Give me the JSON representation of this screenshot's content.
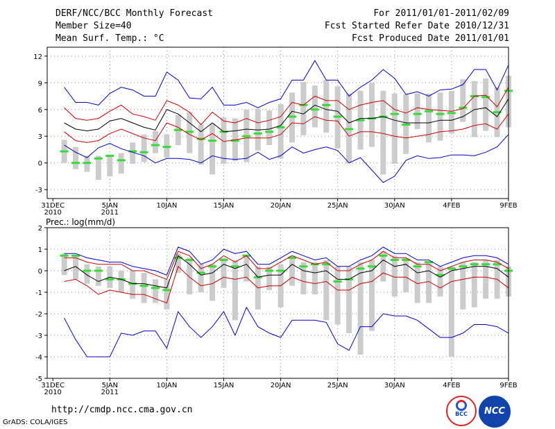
{
  "header": {
    "title": "DERF/NCC/BCC Monthly Forecast",
    "member_size": "Member Size=40",
    "variable": "Mean Surf. Temp.: °C",
    "period": "For 2011/01/01-2011/02/09",
    "fcst_started": "Fcst Started Refer Date 2010/12/31",
    "fcst_produced": "Fcst Produced Date 2011/01/01"
  },
  "footer": {
    "url": "http://cmdp.ncc.cma.gov.cn",
    "credit": "GrADS: COLA/IGES",
    "logo_bcc": "BCC",
    "logo_ncc": "NCC"
  },
  "colors": {
    "max_min": "#0000cc",
    "spread": "#cc0000",
    "mean": "#000000",
    "median": "#33dd33",
    "box": "#cccccc"
  },
  "x_axis": {
    "ticks": [
      {
        "day": 0,
        "label": "31DEC",
        "sub": "2010"
      },
      {
        "day": 5,
        "label": "5JAN",
        "sub": "2011"
      },
      {
        "day": 10,
        "label": "10JAN",
        "sub": ""
      },
      {
        "day": 15,
        "label": "15JAN",
        "sub": ""
      },
      {
        "day": 20,
        "label": "20JAN",
        "sub": ""
      },
      {
        "day": 25,
        "label": "25JAN",
        "sub": ""
      },
      {
        "day": 30,
        "label": "30JAN",
        "sub": ""
      },
      {
        "day": 35,
        "label": "4FEB",
        "sub": ""
      },
      {
        "day": 40,
        "label": "9FEB",
        "sub": ""
      }
    ]
  },
  "chart_data": [
    {
      "type": "box",
      "title": "Mean Surf. Temp.: °C",
      "ylabel": "°C",
      "ylim": [
        -4,
        13
      ],
      "yticks": [
        -3,
        0,
        3,
        6,
        9,
        12
      ],
      "x": [
        1,
        2,
        3,
        4,
        5,
        6,
        7,
        8,
        9,
        10,
        11,
        12,
        13,
        14,
        15,
        16,
        17,
        18,
        19,
        20,
        21,
        22,
        23,
        24,
        25,
        26,
        27,
        28,
        29,
        30,
        31,
        32,
        33,
        34,
        35,
        36,
        37,
        38,
        39,
        40
      ],
      "max": [
        8.5,
        6.8,
        6.8,
        6.5,
        7.8,
        8.5,
        8.2,
        7.5,
        7.5,
        10.2,
        9.3,
        7.3,
        7.2,
        8.5,
        6.5,
        6.5,
        6.8,
        6.2,
        6.8,
        7.2,
        9.3,
        9.3,
        11.5,
        9.3,
        9.3,
        7.5,
        8.5,
        9.3,
        10.5,
        9.5,
        7.7,
        8,
        7.5,
        8.2,
        8.3,
        8.8,
        10.5,
        10.5,
        8.2,
        11
      ],
      "upper": [
        6.2,
        5,
        4.8,
        5,
        5.8,
        6.5,
        5.5,
        5.2,
        4.8,
        7,
        6.5,
        5.7,
        4.3,
        5.7,
        4.7,
        4.5,
        5,
        4.5,
        4.8,
        5.2,
        6.8,
        6.5,
        7.5,
        7,
        7,
        6,
        6.5,
        6.8,
        7,
        6,
        5.6,
        6.2,
        6,
        5.9,
        5.8,
        6.1,
        7.5,
        7.6,
        6.3,
        8.5
      ],
      "mean": [
        4.5,
        3.8,
        3.6,
        3.8,
        4.7,
        5,
        4.5,
        4,
        3.7,
        6,
        5.5,
        4.5,
        3.5,
        4.5,
        3.5,
        3.6,
        3.8,
        3.7,
        3.8,
        4.2,
        5.8,
        5.5,
        6.5,
        6,
        5.8,
        4.5,
        5,
        5,
        5.2,
        4.8,
        4.5,
        4.5,
        4.5,
        4.8,
        4.8,
        5.2,
        6,
        6.2,
        5.2,
        7.2
      ],
      "lower": [
        3.5,
        2.5,
        2.3,
        2.5,
        3.3,
        3.8,
        3.3,
        2.8,
        2.5,
        4.5,
        4,
        3.2,
        2.6,
        3.3,
        2.4,
        2.6,
        2.8,
        2.8,
        2.8,
        3.2,
        4.5,
        4.4,
        5.2,
        4.8,
        4.7,
        3,
        3.5,
        3.5,
        3.3,
        3,
        2.8,
        3,
        3.2,
        3.5,
        3.6,
        3.8,
        4.2,
        4.4,
        3.8,
        5.5
      ],
      "min": [
        2,
        1.2,
        0.6,
        1.7,
        2.2,
        1.6,
        1.2,
        0.8,
        0,
        0.5,
        0.5,
        0.4,
        0,
        0.8,
        0.5,
        0.4,
        0.5,
        1.2,
        0.4,
        0.8,
        1.8,
        1.1,
        1.5,
        1.8,
        1.4,
        0,
        0.6,
        -0.8,
        -2.2,
        -1.5,
        0.3,
        0.8,
        0.5,
        0.6,
        0.9,
        0.9,
        0.8,
        1.2,
        1.8,
        3.2
      ],
      "median": [
        1.3,
        0,
        0,
        0.5,
        0.8,
        0.3,
        1.3,
        1.2,
        2,
        1.8,
        3.7,
        3.5,
        2.7,
        2.5,
        3.5,
        2.5,
        3,
        3.3,
        3.5,
        4,
        5.2,
        6.5,
        6,
        6.5,
        5.2,
        3.8,
        4.8,
        5,
        5.2,
        5.5,
        4.3,
        5.5,
        5.8,
        5.5,
        5.6,
        6.2,
        7.5,
        7.4,
        5.7,
        8.1
      ],
      "box_top": [
        2.6,
        1.8,
        0.8,
        0.8,
        0.8,
        1.1,
        2.3,
        3.2,
        3.6,
        3.2,
        5.4,
        5.7,
        4.3,
        4.4,
        5.1,
        5,
        6,
        6.1,
        5.9,
        6.6,
        7.9,
        9.1,
        8.7,
        9.3,
        8.6,
        7.8,
        8.1,
        9,
        8.1,
        7.8,
        7.7,
        7.8,
        7.8,
        7.9,
        8.1,
        9.4,
        9.2,
        9.5,
        8.5,
        9.8
      ],
      "box_bottom": [
        0,
        -0.7,
        -1,
        -1.9,
        -1.5,
        -1.2,
        -0.1,
        0.1,
        1.1,
        0.6,
        2,
        1.1,
        -0.2,
        -1.3,
        -0.1,
        0.2,
        0.1,
        1.4,
        2,
        0.5,
        2.3,
        3.1,
        4,
        3.4,
        1.6,
        0,
        1.5,
        1.8,
        -1.3,
        -0.1,
        1,
        3.8,
        2.3,
        2.5,
        3.3,
        4.6,
        2.9,
        3.6,
        2.9,
        4
      ]
    },
    {
      "type": "box",
      "title": "Prec.: log(mm/d)",
      "ylabel": "log(mm/d)",
      "ylim": [
        -5,
        2
      ],
      "yticks": [
        -5,
        -4,
        -3,
        -2,
        -1,
        0,
        1,
        2
      ],
      "x": [
        1,
        2,
        3,
        4,
        5,
        6,
        7,
        8,
        9,
        10,
        11,
        12,
        13,
        14,
        15,
        16,
        17,
        18,
        19,
        20,
        21,
        22,
        23,
        24,
        25,
        26,
        27,
        28,
        29,
        30,
        31,
        32,
        33,
        34,
        35,
        36,
        37,
        38,
        39,
        40
      ],
      "max": [
        0.8,
        0.8,
        0.6,
        0.5,
        0.4,
        0.4,
        0.2,
        0.1,
        0,
        -0.2,
        1.1,
        0.9,
        0.3,
        0.5,
        1,
        0.8,
        0.9,
        0.3,
        0.3,
        0.6,
        0.9,
        0.7,
        0.5,
        0.6,
        0.2,
        0.2,
        0.5,
        0.7,
        1.1,
        0.8,
        0.8,
        0.5,
        0.5,
        0.2,
        0.4,
        0.6,
        0.7,
        0.7,
        0.6,
        0.3
      ],
      "upper": [
        0.6,
        0.6,
        0.4,
        0.3,
        0.3,
        0.3,
        0,
        0,
        -0.2,
        -0.4,
        0.9,
        0.7,
        0.1,
        0.3,
        0.7,
        0.4,
        0.7,
        0.1,
        0.1,
        0.4,
        0.7,
        0.5,
        0.3,
        0.4,
        0,
        0,
        0.3,
        0.5,
        0.9,
        0.6,
        0.6,
        0.3,
        0.3,
        0,
        0.2,
        0.4,
        0.5,
        0.5,
        0.4,
        0.1
      ],
      "mean": [
        0,
        0.2,
        -0.2,
        -0.5,
        -0.3,
        -0.4,
        -0.6,
        -0.6,
        -0.7,
        -0.8,
        0.7,
        0.3,
        -0.2,
        -0.1,
        0.3,
        0.1,
        0.3,
        -0.3,
        -0.2,
        -0.2,
        0.3,
        0,
        -0.1,
        0,
        -0.4,
        -0.4,
        -0.1,
        0,
        0.5,
        0.2,
        0.3,
        -0.1,
        0,
        -0.3,
        0,
        0.1,
        0.2,
        0.2,
        0.1,
        -0.3
      ],
      "lower": [
        -0.5,
        -0.4,
        -0.7,
        -1.1,
        -0.9,
        -1,
        -1.1,
        -1.1,
        -1.3,
        -1.5,
        0.2,
        -0.3,
        -0.7,
        -0.6,
        -0.3,
        -0.4,
        -0.3,
        -0.8,
        -0.7,
        -0.7,
        -0.3,
        -0.5,
        -0.6,
        -0.5,
        -0.9,
        -0.9,
        -0.6,
        -0.5,
        -0.1,
        -0.3,
        -0.3,
        -0.6,
        -0.5,
        -0.8,
        -0.5,
        -0.4,
        -0.3,
        -0.3,
        -0.4,
        -0.8
      ],
      "min": [
        -2.2,
        -3.2,
        -4,
        -4,
        -4,
        -2.9,
        -3,
        -2.8,
        -2.8,
        -3.6,
        -1.9,
        -2.6,
        -3.1,
        -2.6,
        -1.9,
        -3,
        -1.7,
        -2.6,
        -2.9,
        -3.1,
        -2.3,
        -2.3,
        -2.3,
        -2.4,
        -3.4,
        -3.7,
        -2.6,
        -2.6,
        -2,
        -2.1,
        -2.1,
        -2.3,
        -2.7,
        -3.1,
        -3.1,
        -2.9,
        -2.5,
        -2.5,
        -2.6,
        -2.9
      ],
      "median": [
        0.7,
        0.7,
        0,
        0,
        -0.4,
        -0.4,
        -0.6,
        -0.7,
        -0.8,
        -0.9,
        0.6,
        0.5,
        -0.1,
        0.2,
        0.5,
        0.2,
        0.7,
        -0.3,
        0,
        0,
        0.6,
        0.2,
        0.3,
        0.3,
        -0.5,
        -0.4,
        0.1,
        0.2,
        0.7,
        0.5,
        0.5,
        0.2,
        0.4,
        -0.2,
        0.1,
        0.2,
        0.3,
        0.3,
        0.3,
        0
      ],
      "box_top": [
        0.8,
        0.7,
        0.3,
        0.2,
        0.2,
        0,
        0,
        -0.1,
        -0.4,
        -0.4,
        0.8,
        0.6,
        0.3,
        0.3,
        0.6,
        0.5,
        0.7,
        0.2,
        0.2,
        0.3,
        0.7,
        0.4,
        0.4,
        0.5,
        0.2,
        0.2,
        0.4,
        0.5,
        0.9,
        0.7,
        0.6,
        0.4,
        0.4,
        0.2,
        0.2,
        0.4,
        0.4,
        0.5,
        0.5,
        0.2
      ],
      "box_bottom": [
        -0.2,
        -0.4,
        -0.6,
        -0.7,
        -0.8,
        -1,
        -1.3,
        -1.5,
        -1.5,
        -1.8,
        -0.1,
        -1.1,
        -1,
        -1.4,
        -0.8,
        -2.3,
        -0.5,
        -1.8,
        -0.9,
        -1.7,
        -0.7,
        -1.1,
        -1.1,
        -2.3,
        -2.5,
        -2.9,
        -3.9,
        -2.8,
        -0.5,
        -1.2,
        -1,
        -1.5,
        -1.5,
        -1.2,
        -4,
        -1.8,
        -1.7,
        -1.3,
        -1.3,
        -1.2
      ]
    }
  ]
}
